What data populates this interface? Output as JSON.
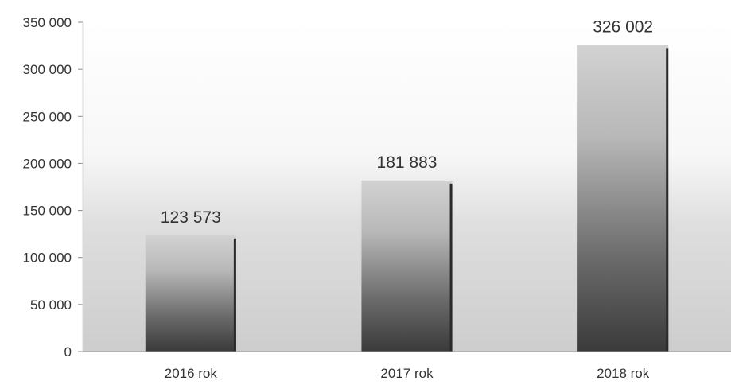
{
  "chart_data": {
    "type": "bar",
    "title": "",
    "xlabel": "",
    "ylabel": "",
    "categories": [
      "2016 rok",
      "2017 rok",
      "2018 rok"
    ],
    "values": [
      123573,
      181883,
      326002
    ],
    "data_labels": [
      "123 573",
      "181 883",
      "326 002"
    ],
    "ylim": [
      0,
      350000
    ],
    "yticks": [
      0,
      50000,
      100000,
      150000,
      200000,
      250000,
      300000,
      350000
    ],
    "ytick_labels": [
      "0",
      "50 000",
      "100 000",
      "150 000",
      "200 000",
      "250 000",
      "300 000",
      "350 000"
    ],
    "grid": false,
    "legend": "none",
    "colors": {
      "bar_dark": "#3a3a3a",
      "bar_light": "#d2d2d2",
      "bar_edge": "#2a2a2a",
      "text": "#333333"
    }
  }
}
